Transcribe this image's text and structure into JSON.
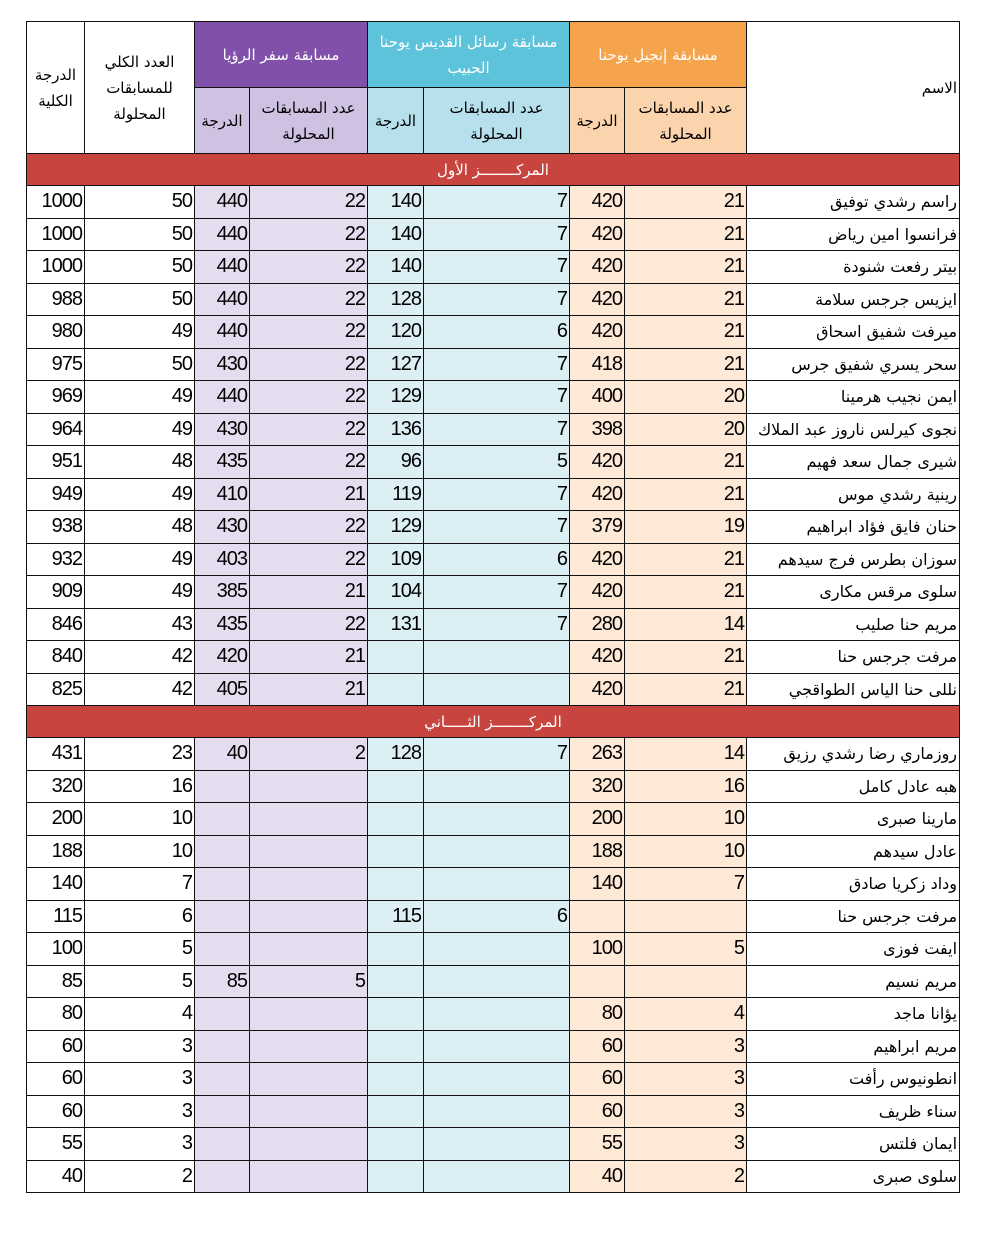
{
  "headers": {
    "name": "الاسم",
    "john": "مسابقة إنجيل يوحنا",
    "epistles": "مسابقة رسائل القديس يوحنا الحبيب",
    "revelation": "مسابقة سفر الرؤيا",
    "total_count": "العدد الكلي للمسابقات المحلولة",
    "total_grade": "الدرجة الكلية",
    "solved_count": "عدد المسابقات المحلولة",
    "grade": "الدرجة"
  },
  "colors": {
    "john_header": "#f6a44b",
    "epistles_header": "#5cc3da",
    "revelation_header": "#8050aa",
    "section_bar": "#c8453f"
  },
  "sections": [
    {
      "title": "المركــــــــز الأول",
      "rows": [
        [
          "راسم رشدي توفيق",
          "21",
          "420",
          "7",
          "140",
          "22",
          "440",
          "50",
          "1000"
        ],
        [
          "فرانسوا امين رياض",
          "21",
          "420",
          "7",
          "140",
          "22",
          "440",
          "50",
          "1000"
        ],
        [
          "بيتر رفعت شنودة",
          "21",
          "420",
          "7",
          "140",
          "22",
          "440",
          "50",
          "1000"
        ],
        [
          "ايزيس جرجس سلامة",
          "21",
          "420",
          "7",
          "128",
          "22",
          "440",
          "50",
          "988"
        ],
        [
          "ميرفت شفيق اسحاق",
          "21",
          "420",
          "6",
          "120",
          "22",
          "440",
          "49",
          "980"
        ],
        [
          "سحر يسري شفيق جرس",
          "21",
          "418",
          "7",
          "127",
          "22",
          "430",
          "50",
          "975"
        ],
        [
          "ايمن نجيب هرمينا",
          "20",
          "400",
          "7",
          "129",
          "22",
          "440",
          "49",
          "969"
        ],
        [
          "نجوى كيرلس ناروز عبد الملاك",
          "20",
          "398",
          "7",
          "136",
          "22",
          "430",
          "49",
          "964"
        ],
        [
          "شيرى جمال سعد فهيم",
          "21",
          "420",
          "5",
          "96",
          "22",
          "435",
          "48",
          "951"
        ],
        [
          "رينية رشدي موس",
          "21",
          "420",
          "7",
          "119",
          "21",
          "410",
          "49",
          "949"
        ],
        [
          "حنان فايق فؤاد ابراهيم",
          "19",
          "379",
          "7",
          "129",
          "22",
          "430",
          "48",
          "938"
        ],
        [
          "سوزان بطرس فرج سيدهم",
          "21",
          "420",
          "6",
          "109",
          "22",
          "403",
          "49",
          "932"
        ],
        [
          "سلوى مرقس مكارى",
          "21",
          "420",
          "7",
          "104",
          "21",
          "385",
          "49",
          "909"
        ],
        [
          "مريم حنا صليب",
          "14",
          "280",
          "7",
          "131",
          "22",
          "435",
          "43",
          "846"
        ],
        [
          "مرفت جرجس حنا",
          "21",
          "420",
          "",
          "",
          "21",
          "420",
          "42",
          "840"
        ],
        [
          "نللى حنا الياس الطواقجي",
          "21",
          "420",
          "",
          "",
          "21",
          "405",
          "42",
          "825"
        ]
      ]
    },
    {
      "title": "المركــــــــز الثـــــاني",
      "rows": [
        [
          "روزماري رضا رشدي رزيق",
          "14",
          "263",
          "7",
          "128",
          "2",
          "40",
          "23",
          "431"
        ],
        [
          "هبه عادل كامل",
          "16",
          "320",
          "",
          "",
          "",
          "",
          "16",
          "320"
        ],
        [
          "مارينا صبرى",
          "10",
          "200",
          "",
          "",
          "",
          "",
          "10",
          "200"
        ],
        [
          "عادل سيدهم",
          "10",
          "188",
          "",
          "",
          "",
          "",
          "10",
          "188"
        ],
        [
          "وداد زكريا صادق",
          "7",
          "140",
          "",
          "",
          "",
          "",
          "7",
          "140"
        ],
        [
          "مرفت جرجس حنا",
          "",
          "",
          "6",
          "115",
          "",
          "",
          "6",
          "115"
        ],
        [
          "ايفت فوزى",
          "5",
          "100",
          "",
          "",
          "",
          "",
          "5",
          "100"
        ],
        [
          "مريم نسيم",
          "",
          "",
          "",
          "",
          "5",
          "85",
          "5",
          "85"
        ],
        [
          "يؤانا ماجد",
          "4",
          "80",
          "",
          "",
          "",
          "",
          "4",
          "80"
        ],
        [
          "مريم ابراهيم",
          "3",
          "60",
          "",
          "",
          "",
          "",
          "3",
          "60"
        ],
        [
          "انطونيوس رأفت",
          "3",
          "60",
          "",
          "",
          "",
          "",
          "3",
          "60"
        ],
        [
          "سناء ظريف",
          "3",
          "60",
          "",
          "",
          "",
          "",
          "3",
          "60"
        ],
        [
          "ايمان فلتس",
          "3",
          "55",
          "",
          "",
          "",
          "",
          "3",
          "55"
        ],
        [
          "سلوى صبرى",
          "2",
          "40",
          "",
          "",
          "",
          "",
          "2",
          "40"
        ]
      ]
    }
  ]
}
